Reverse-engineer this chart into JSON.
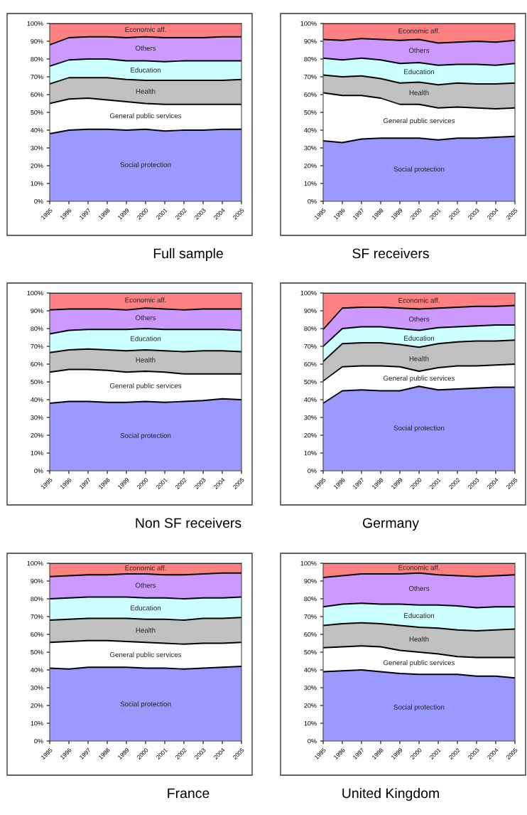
{
  "chart_data": [
    {
      "type": "area",
      "stacked": true,
      "title": "Full sample",
      "categories": [
        "1995",
        "1996",
        "1997",
        "1998",
        "1999",
        "2000",
        "2001",
        "2002",
        "2003",
        "2004",
        "2005"
      ],
      "ylim": [
        0,
        100
      ],
      "yticks": [
        {
          "value": 0,
          "label": "0%"
        },
        {
          "value": 10,
          "label": "10%"
        },
        {
          "value": 20,
          "label": "20%"
        },
        {
          "value": 30,
          "label": "30%"
        },
        {
          "value": 40,
          "label": "40%"
        },
        {
          "value": 50,
          "label": "50%"
        },
        {
          "value": 60,
          "label": "60%"
        },
        {
          "value": 70,
          "label": "70%"
        },
        {
          "value": 80,
          "label": "80%"
        },
        {
          "value": 90,
          "label": "90%"
        },
        {
          "value": 100,
          "label": "100%"
        }
      ],
      "series": [
        {
          "name": "Social protection",
          "color": "#9999ff",
          "values": [
            38,
            40,
            40.5,
            40.5,
            40,
            40.5,
            39.5,
            40,
            40,
            40.5,
            40.5
          ]
        },
        {
          "name": "General public services",
          "color": "#ffffff",
          "values": [
            17,
            17.5,
            17.5,
            16.5,
            16,
            14.5,
            15,
            14.5,
            14.5,
            14,
            14
          ]
        },
        {
          "name": "Health",
          "color": "#c0c0c0",
          "values": [
            11,
            12,
            11.5,
            12.5,
            12.5,
            13,
            13.5,
            13.5,
            13.5,
            13.5,
            14
          ]
        },
        {
          "name": "Education",
          "color": "#ccffff",
          "values": [
            10,
            10,
            10.5,
            10.5,
            10.5,
            11,
            10.5,
            11,
            11,
            11,
            10.5
          ]
        },
        {
          "name": "Others",
          "color": "#cc99ff",
          "values": [
            12,
            12.5,
            12.5,
            12.5,
            13,
            13.5,
            13.5,
            13,
            13,
            13.5,
            13.5
          ]
        },
        {
          "name": "Economic aff.",
          "color": "#ff8080",
          "values": [
            12,
            8,
            7.5,
            7.5,
            8,
            7.5,
            8,
            8,
            8,
            7.5,
            7.5
          ]
        }
      ]
    },
    {
      "type": "area",
      "stacked": true,
      "title": "SF receivers",
      "categories": [
        "1995",
        "1996",
        "1997",
        "1998",
        "1999",
        "2000",
        "2001",
        "2002",
        "2003",
        "2004",
        "2005"
      ],
      "ylim": [
        0,
        100
      ],
      "yticks": [
        {
          "value": 0,
          "label": "0%"
        },
        {
          "value": 10,
          "label": "10%"
        },
        {
          "value": 20,
          "label": "20%"
        },
        {
          "value": 30,
          "label": "30%"
        },
        {
          "value": 40,
          "label": "40%"
        },
        {
          "value": 50,
          "label": "50%"
        },
        {
          "value": 60,
          "label": "60%"
        },
        {
          "value": 70,
          "label": "70%"
        },
        {
          "value": 80,
          "label": "80%"
        },
        {
          "value": 90,
          "label": "90%"
        },
        {
          "value": 100,
          "label": "100%"
        }
      ],
      "series": [
        {
          "name": "Social protection",
          "color": "#9999ff",
          "values": [
            34,
            33,
            35,
            35.5,
            35.5,
            35.5,
            34.5,
            35.5,
            35.5,
            36,
            36.5
          ]
        },
        {
          "name": "General public services",
          "color": "#ffffff",
          "values": [
            27,
            26.5,
            24.5,
            22.5,
            19,
            19,
            18,
            17.5,
            17,
            16,
            16
          ]
        },
        {
          "name": "Health",
          "color": "#c0c0c0",
          "values": [
            10,
            10.5,
            11,
            11,
            12,
            12.5,
            13,
            13.5,
            13.5,
            14,
            14
          ]
        },
        {
          "name": "Education",
          "color": "#ccffff",
          "values": [
            9.5,
            9.5,
            10,
            10.5,
            11,
            11,
            11,
            10.5,
            11,
            10.5,
            11
          ]
        },
        {
          "name": "Others",
          "color": "#cc99ff",
          "values": [
            10.5,
            11,
            11,
            11.5,
            13,
            13,
            12.5,
            12.5,
            13,
            13,
            13
          ]
        },
        {
          "name": "Economic aff.",
          "color": "#ff8080",
          "values": [
            9,
            9.5,
            8.5,
            9,
            9.5,
            9,
            11,
            10.5,
            10,
            10.5,
            9.5
          ]
        }
      ]
    },
    {
      "type": "area",
      "stacked": true,
      "title": "Non SF receivers",
      "categories": [
        "1995",
        "1996",
        "1997",
        "1998",
        "1999",
        "2000",
        "2001",
        "2002",
        "2003",
        "2004",
        "2005"
      ],
      "ylim": [
        0,
        100
      ],
      "yticks": [
        {
          "value": 0,
          "label": "0%"
        },
        {
          "value": 10,
          "label": "10%"
        },
        {
          "value": 20,
          "label": "20%"
        },
        {
          "value": 30,
          "label": "30%"
        },
        {
          "value": 40,
          "label": "40%"
        },
        {
          "value": 50,
          "label": "50%"
        },
        {
          "value": 60,
          "label": "60%"
        },
        {
          "value": 70,
          "label": "70%"
        },
        {
          "value": 80,
          "label": "80%"
        },
        {
          "value": 90,
          "label": "90%"
        },
        {
          "value": 100,
          "label": "100%"
        }
      ],
      "series": [
        {
          "name": "Social protection",
          "color": "#9999ff",
          "values": [
            38,
            39,
            39,
            38.5,
            38.5,
            39,
            38.5,
            39,
            39.5,
            40.5,
            40
          ]
        },
        {
          "name": "General public services",
          "color": "#ffffff",
          "values": [
            17.5,
            18,
            18,
            18,
            17,
            17,
            17,
            15.5,
            15,
            14,
            14.5
          ]
        },
        {
          "name": "Health",
          "color": "#c0c0c0",
          "values": [
            11,
            11,
            11.5,
            11.5,
            12,
            12,
            12,
            12.5,
            13,
            13,
            12.5
          ]
        },
        {
          "name": "Education",
          "color": "#ccffff",
          "values": [
            10.5,
            11,
            11,
            11.5,
            12,
            12,
            12,
            12.5,
            12,
            12,
            12
          ]
        },
        {
          "name": "Others",
          "color": "#cc99ff",
          "values": [
            13.5,
            12,
            11.5,
            11.5,
            11,
            11.5,
            11.5,
            11,
            11.5,
            11.5,
            12
          ]
        },
        {
          "name": "Economic aff.",
          "color": "#ff8080",
          "values": [
            9.5,
            9,
            9,
            9,
            9.5,
            8.5,
            9,
            9.5,
            9,
            9,
            9
          ]
        }
      ]
    },
    {
      "type": "area",
      "stacked": true,
      "title": "Germany",
      "categories": [
        "1995",
        "1996",
        "1997",
        "1998",
        "1999",
        "2000",
        "2001",
        "2002",
        "2003",
        "2004",
        "2005"
      ],
      "ylim": [
        0,
        100
      ],
      "yticks": [
        {
          "value": 0,
          "label": "0%"
        },
        {
          "value": 10,
          "label": "10%"
        },
        {
          "value": 20,
          "label": "20%"
        },
        {
          "value": 30,
          "label": "30%"
        },
        {
          "value": 40,
          "label": "40%"
        },
        {
          "value": 50,
          "label": "50%"
        },
        {
          "value": 60,
          "label": "60%"
        },
        {
          "value": 70,
          "label": "70%"
        },
        {
          "value": 80,
          "label": "80%"
        },
        {
          "value": 90,
          "label": "90%"
        },
        {
          "value": 100,
          "label": "100%"
        }
      ],
      "series": [
        {
          "name": "Social protection",
          "color": "#9999ff",
          "values": [
            38,
            45,
            45.5,
            45,
            45,
            47.5,
            45.5,
            46,
            46.5,
            47,
            47
          ]
        },
        {
          "name": "General public services",
          "color": "#ffffff",
          "values": [
            12.5,
            13.5,
            13.5,
            14,
            13.5,
            8.5,
            12.5,
            13,
            12.5,
            12.5,
            13
          ]
        },
        {
          "name": "Health",
          "color": "#c0c0c0",
          "values": [
            11,
            13,
            13,
            13,
            12.5,
            13.5,
            13.5,
            13.5,
            14,
            13.5,
            13.5
          ]
        },
        {
          "name": "Education",
          "color": "#ccffff",
          "values": [
            8.5,
            8.5,
            9,
            9,
            9,
            9.5,
            9,
            8.5,
            8.5,
            9,
            8.5
          ]
        },
        {
          "name": "Others",
          "color": "#cc99ff",
          "values": [
            9.5,
            11.5,
            11,
            11,
            11.5,
            12,
            11,
            11,
            11,
            10.5,
            11
          ]
        },
        {
          "name": "Economic aff.",
          "color": "#ff8080",
          "values": [
            20.5,
            8.5,
            8,
            8,
            8.5,
            9,
            8.5,
            8,
            7.5,
            7.5,
            7
          ]
        }
      ]
    },
    {
      "type": "area",
      "stacked": true,
      "title": "France",
      "categories": [
        "1995",
        "1996",
        "1997",
        "1998",
        "1999",
        "2000",
        "2001",
        "2002",
        "2003",
        "2004",
        "2005"
      ],
      "ylim": [
        0,
        100
      ],
      "yticks": [
        {
          "value": 0,
          "label": "0%"
        },
        {
          "value": 10,
          "label": "10%"
        },
        {
          "value": 20,
          "label": "20%"
        },
        {
          "value": 30,
          "label": "30%"
        },
        {
          "value": 40,
          "label": "40%"
        },
        {
          "value": 50,
          "label": "50%"
        },
        {
          "value": 60,
          "label": "60%"
        },
        {
          "value": 70,
          "label": "70%"
        },
        {
          "value": 80,
          "label": "80%"
        },
        {
          "value": 90,
          "label": "90%"
        },
        {
          "value": 100,
          "label": "100%"
        }
      ],
      "series": [
        {
          "name": "Social protection",
          "color": "#9999ff",
          "values": [
            41,
            40.5,
            41.5,
            41.5,
            41.5,
            41,
            41,
            40.5,
            41,
            41.5,
            42
          ]
        },
        {
          "name": "General public services",
          "color": "#ffffff",
          "values": [
            14.5,
            15.5,
            15,
            15,
            14.5,
            14.5,
            14,
            14,
            14,
            13.5,
            13.5
          ]
        },
        {
          "name": "Health",
          "color": "#c0c0c0",
          "values": [
            12.5,
            12.5,
            12.5,
            12.5,
            13,
            13,
            13.5,
            13.5,
            14,
            14,
            14
          ]
        },
        {
          "name": "Education",
          "color": "#ccffff",
          "values": [
            12,
            12,
            12,
            12,
            12,
            12,
            12,
            12,
            11.5,
            11.5,
            11.5
          ]
        },
        {
          "name": "Others",
          "color": "#cc99ff",
          "values": [
            12.5,
            12.5,
            12.5,
            12.5,
            13,
            13.5,
            13,
            13.5,
            13.5,
            14,
            13.5
          ]
        },
        {
          "name": "Economic aff.",
          "color": "#ff8080",
          "values": [
            7.5,
            7,
            6.5,
            6.5,
            6,
            6,
            6.5,
            6.5,
            6,
            5.5,
            5.5
          ]
        }
      ]
    },
    {
      "type": "area",
      "stacked": true,
      "title": "United Kingdom",
      "categories": [
        "1995",
        "1996",
        "1997",
        "1998",
        "1999",
        "2000",
        "2001",
        "2002",
        "2003",
        "2004",
        "2005"
      ],
      "ylim": [
        0,
        100
      ],
      "yticks": [
        {
          "value": 0,
          "label": "0%"
        },
        {
          "value": 10,
          "label": "10%"
        },
        {
          "value": 20,
          "label": "20%"
        },
        {
          "value": 30,
          "label": "30%"
        },
        {
          "value": 40,
          "label": "40%"
        },
        {
          "value": 50,
          "label": "50%"
        },
        {
          "value": 60,
          "label": "60%"
        },
        {
          "value": 70,
          "label": "70%"
        },
        {
          "value": 80,
          "label": "80%"
        },
        {
          "value": 90,
          "label": "90%"
        },
        {
          "value": 100,
          "label": "100%"
        }
      ],
      "series": [
        {
          "name": "Social protection",
          "color": "#9999ff",
          "values": [
            39,
            39.5,
            40,
            39,
            38,
            37.5,
            37.5,
            37.5,
            36.5,
            36.5,
            35.5
          ]
        },
        {
          "name": "General public services",
          "color": "#ffffff",
          "values": [
            13.5,
            13.5,
            13.5,
            14,
            13,
            12.5,
            11.5,
            10,
            10.5,
            10.5,
            11.5
          ]
        },
        {
          "name": "Health",
          "color": "#c0c0c0",
          "values": [
            12.5,
            13,
            13,
            13,
            14,
            14,
            14.5,
            15,
            15,
            15.5,
            16
          ]
        },
        {
          "name": "Education",
          "color": "#ccffff",
          "values": [
            10.5,
            11,
            11,
            11,
            12,
            12.5,
            13,
            13.5,
            13,
            13,
            12.5
          ]
        },
        {
          "name": "Others",
          "color": "#cc99ff",
          "values": [
            16.5,
            16,
            16.5,
            17,
            17,
            18,
            17,
            17,
            17.5,
            17.5,
            18
          ]
        },
        {
          "name": "Economic aff.",
          "color": "#ff8080",
          "values": [
            8,
            7,
            6,
            6,
            6,
            5.5,
            6.5,
            7,
            7.5,
            7,
            6.5
          ]
        }
      ]
    }
  ]
}
